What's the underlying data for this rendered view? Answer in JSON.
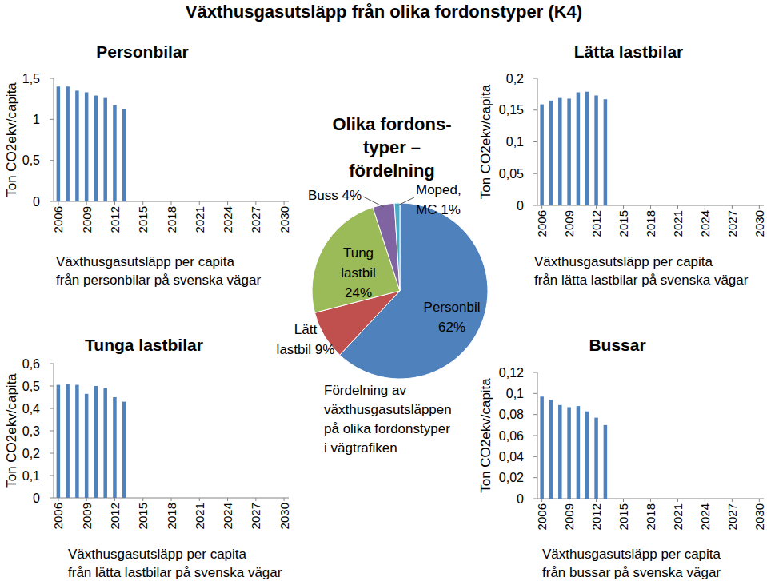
{
  "title": "Växthusgasutsläpp från olika fordonstyper (K4)",
  "chart_data": [
    {
      "type": "bar",
      "title": "Personbilar",
      "y_label": "Ton CO2ekv/capita",
      "x_label": "Växthusgasutsläpp per capita\nfrån personbilar på svenska vägar",
      "categories": [
        "2006",
        null,
        null,
        "2009",
        null,
        null,
        "2012",
        null,
        null,
        "2015",
        null,
        null,
        "2018",
        null,
        null,
        "2021",
        null,
        null,
        "2024",
        null,
        null,
        "2027",
        null,
        null,
        "2030"
      ],
      "values": [
        1.4,
        1.4,
        1.35,
        1.33,
        1.29,
        1.26,
        1.17,
        1.13,
        null,
        null,
        null,
        null,
        null,
        null,
        null,
        null,
        null,
        null,
        null,
        null,
        null,
        null,
        null,
        null,
        null
      ],
      "color": "#4f81bd",
      "ylim": [
        0,
        1.5
      ],
      "yticks": [
        0,
        {
          "value": 0.5,
          "label": "0,5"
        },
        1,
        {
          "value": 1.5,
          "label": "1,5"
        }
      ]
    },
    {
      "type": "bar",
      "title": "Lätta lastbilar",
      "y_label": "Ton CO2ekv/capita",
      "x_label": "Växthusgasutsläpp per capita\nfrån lätta lastbilar på svenska vägar",
      "categories": [
        "2006",
        null,
        null,
        "2009",
        null,
        null,
        "2012",
        null,
        null,
        "2015",
        null,
        null,
        "2018",
        null,
        null,
        "2021",
        null,
        null,
        "2024",
        null,
        null,
        "2027",
        null,
        null,
        "2030"
      ],
      "values": [
        0.159,
        0.165,
        0.169,
        0.168,
        0.178,
        0.179,
        0.173,
        0.167,
        null,
        null,
        null,
        null,
        null,
        null,
        null,
        null,
        null,
        null,
        null,
        null,
        null,
        null,
        null,
        null,
        null
      ],
      "color": "#4f81bd",
      "ylim": [
        0,
        0.2
      ],
      "yticks": [
        0,
        {
          "value": 0.05,
          "label": "0,05"
        },
        {
          "value": 0.1,
          "label": "0,1"
        },
        {
          "value": 0.15,
          "label": "0,15"
        },
        {
          "value": 0.2,
          "label": "0,2"
        }
      ]
    },
    {
      "type": "bar",
      "title": "Tunga lastbilar",
      "y_label": "Ton CO2ekv/capita",
      "x_label": "Växthusgasutsläpp per capita\nfrån lätta lastbilar på svenska vägar",
      "categories": [
        "2006",
        null,
        null,
        "2009",
        null,
        null,
        "2012",
        null,
        null,
        "2015",
        null,
        null,
        "2018",
        null,
        null,
        "2021",
        null,
        null,
        "2024",
        null,
        null,
        "2027",
        null,
        null,
        "2030"
      ],
      "values": [
        0.505,
        0.51,
        0.505,
        0.465,
        0.5,
        0.49,
        0.45,
        0.43,
        null,
        null,
        null,
        null,
        null,
        null,
        null,
        null,
        null,
        null,
        null,
        null,
        null,
        null,
        null,
        null,
        null
      ],
      "color": "#4f81bd",
      "ylim": [
        0,
        0.6
      ],
      "yticks": [
        0,
        {
          "value": 0.1,
          "label": "0,1"
        },
        {
          "value": 0.2,
          "label": "0,2"
        },
        {
          "value": 0.3,
          "label": "0,3"
        },
        {
          "value": 0.4,
          "label": "0,4"
        },
        {
          "value": 0.5,
          "label": "0,5"
        },
        {
          "value": 0.6,
          "label": "0,6"
        }
      ]
    },
    {
      "type": "bar",
      "title": "Bussar",
      "y_label": "Ton CO2ekv/capita",
      "x_label": "Växthusgasutsläpp per capita\nfrån bussar på svenska vägar",
      "categories": [
        "2006",
        null,
        null,
        "2009",
        null,
        null,
        "2012",
        null,
        null,
        "2015",
        null,
        null,
        "2018",
        null,
        null,
        "2021",
        null,
        null,
        "2024",
        null,
        null,
        "2027",
        null,
        null,
        "2030"
      ],
      "values": [
        0.097,
        0.094,
        0.089,
        0.087,
        0.088,
        0.083,
        0.077,
        0.07,
        null,
        null,
        null,
        null,
        null,
        null,
        null,
        null,
        null,
        null,
        null,
        null,
        null,
        null,
        null,
        null,
        null
      ],
      "color": "#4f81bd",
      "ylim": [
        0,
        0.12
      ],
      "yticks": [
        0,
        {
          "value": 0.02,
          "label": "0,02"
        },
        {
          "value": 0.04,
          "label": "0,04"
        },
        {
          "value": 0.06,
          "label": "0,06"
        },
        {
          "value": 0.08,
          "label": "0,08"
        },
        {
          "value": 0.1,
          "label": "0,1"
        },
        {
          "value": 0.12,
          "label": "0,12"
        }
      ]
    },
    {
      "type": "pie",
      "title": "Olika fordons-\ntyper –\nfördelning",
      "categories": [
        "Personbil",
        "Lätt lastbil",
        "Tung lastbil",
        "Buss",
        "Moped, MC"
      ],
      "values": [
        62,
        9,
        24,
        4,
        1
      ],
      "value_labels": [
        "62%",
        "9%",
        "24%",
        "4%",
        "1%"
      ],
      "colors": [
        "#4f81bd",
        "#c0504d",
        "#9bbb59",
        "#8064a2",
        "#4bacc6"
      ],
      "data_labels": true,
      "annotation": "Fördelning av\nväxthusgasutsläppen\npå olika fordonstyper\ni vägtrafiken"
    }
  ]
}
